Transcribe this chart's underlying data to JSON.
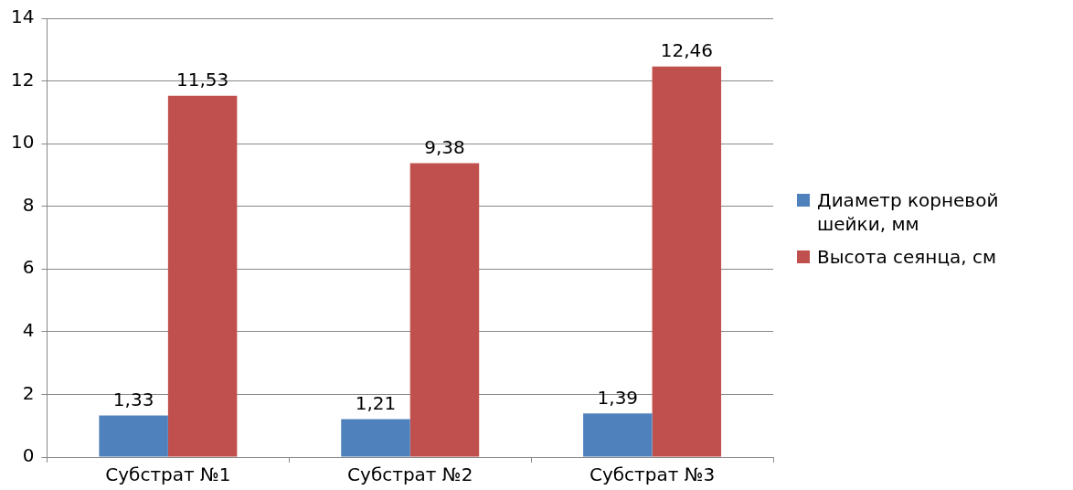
{
  "chart_data": {
    "type": "bar",
    "categories": [
      "Субстрат №1",
      "Субстрат №2",
      "Субстрат №3"
    ],
    "series": [
      {
        "name": "Диаметр корневой шейки, мм",
        "color": "#4f81bd",
        "values": [
          1.33,
          1.21,
          1.39
        ],
        "value_labels": [
          "1,33",
          "1,21",
          "1,39"
        ]
      },
      {
        "name": "Высота сеянца, см",
        "color": "#c0504d",
        "values": [
          11.53,
          9.38,
          12.46
        ],
        "value_labels": [
          "11,53",
          "9,38",
          "12,46"
        ]
      }
    ],
    "ylim": [
      0,
      14
    ],
    "yticks": [
      0,
      2,
      4,
      6,
      8,
      10,
      12,
      14
    ],
    "grid": "y",
    "legend": "right"
  }
}
